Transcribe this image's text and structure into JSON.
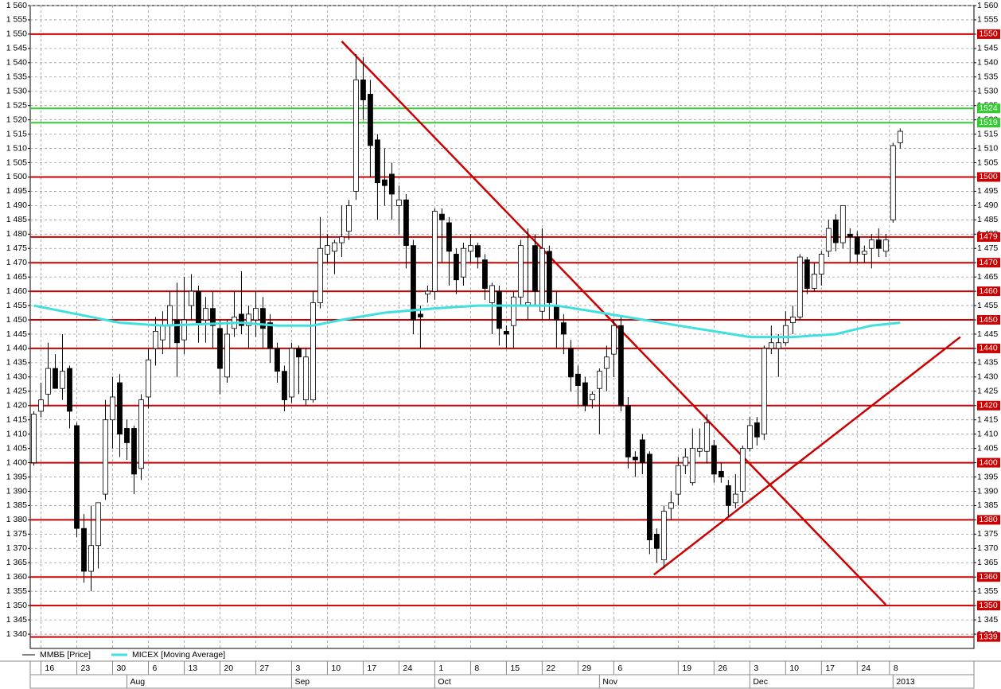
{
  "chart_data": {
    "type": "candlestick",
    "x": [
      0,
      1,
      2,
      3,
      4,
      5,
      6,
      7,
      8,
      9,
      10,
      11,
      12,
      13,
      14,
      15,
      16,
      17,
      18,
      19,
      20,
      21,
      22,
      23,
      24,
      25,
      26,
      27,
      28,
      29,
      30,
      31,
      32,
      33,
      34,
      35,
      36,
      37,
      38,
      39,
      40,
      41,
      42,
      43,
      44,
      45,
      46,
      47,
      48,
      49,
      50,
      51,
      52,
      53,
      54,
      55,
      56,
      57,
      58,
      59,
      60,
      61,
      62,
      63,
      64,
      65,
      66,
      67,
      68,
      69,
      70,
      71,
      72,
      73,
      74,
      75,
      76,
      77,
      78,
      79,
      80,
      81,
      82,
      83,
      84,
      85,
      86,
      87,
      88,
      89,
      90,
      91,
      92,
      93,
      94,
      95,
      96,
      97,
      98,
      99,
      100,
      101,
      102,
      103,
      104,
      105,
      106,
      107,
      108,
      109,
      110,
      111,
      112,
      113,
      114,
      115,
      116,
      117,
      118,
      119,
      120,
      121
    ],
    "series": [
      {
        "name": "ММВБ [Price]",
        "color": "#000000",
        "up_color": "#ffffff",
        "down_color": "#000000",
        "open": [
          1400,
          1418,
          1424,
          1433,
          1426,
          1433,
          1413,
          1377,
          1362,
          1371,
          1389,
          1415,
          1428,
          1412,
          1412,
          1398,
          1423,
          1440,
          1443,
          1448,
          1450,
          1443,
          1455,
          1460,
          1450,
          1454,
          1447,
          1430,
          1447,
          1452,
          1448,
          1450,
          1454,
          1449,
          1440,
          1432,
          1423,
          1440,
          1422,
          1422,
          1456,
          1473,
          1474,
          1477,
          1481,
          1495,
          1534,
          1529,
          1513,
          1499,
          1501,
          1490,
          1492,
          1476,
          1452,
          1459,
          1460,
          1487,
          1484,
          1473,
          1465,
          1474,
          1476,
          1471,
          1456,
          1460,
          1446,
          1448,
          1458,
          1455,
          1476,
          1453,
          1474,
          1455,
          1449,
          1440,
          1431,
          1428,
          1422,
          1426,
          1433,
          1438,
          1448,
          1420,
          1402,
          1408,
          1403,
          1375,
          1366,
          1384,
          1389,
          1399,
          1393,
          1404,
          1404,
          1406,
          1397,
          1392,
          1386,
          1390,
          1405,
          1414,
          1410,
          1440,
          1440,
          1442,
          1449,
          1451,
          1471,
          1461,
          1466,
          1474,
          1485,
          1477,
          1480,
          1479,
          1473,
          1475,
          1478,
          1474,
          1485,
          1512
        ],
        "high": [
          1418,
          1428,
          1442,
          1438,
          1445,
          1434,
          1414,
          1382,
          1385,
          1386,
          1422,
          1430,
          1431,
          1415,
          1413,
          1424,
          1440,
          1451,
          1453,
          1460,
          1463,
          1465,
          1466,
          1462,
          1458,
          1460,
          1450,
          1450,
          1460,
          1467,
          1455,
          1460,
          1458,
          1452,
          1442,
          1434,
          1442,
          1441,
          1440,
          1460,
          1486,
          1480,
          1478,
          1490,
          1492,
          1543,
          1542,
          1534,
          1515,
          1510,
          1505,
          1497,
          1494,
          1478,
          1455,
          1462,
          1489,
          1489,
          1486,
          1475,
          1477,
          1480,
          1477,
          1473,
          1463,
          1462,
          1448,
          1460,
          1478,
          1482,
          1480,
          1482,
          1476,
          1460,
          1452,
          1443,
          1434,
          1430,
          1425,
          1433,
          1441,
          1450,
          1451,
          1423,
          1404,
          1410,
          1404,
          1377,
          1385,
          1390,
          1402,
          1405,
          1412,
          1412,
          1417,
          1408,
          1400,
          1394,
          1396,
          1406,
          1416,
          1416,
          1441,
          1448,
          1445,
          1453,
          1455,
          1473,
          1472,
          1470,
          1474,
          1485,
          1487,
          1490,
          1482,
          1481,
          1476,
          1480,
          1482,
          1480,
          1512,
          1517
        ],
        "low": [
          1399,
          1416,
          1420,
          1426,
          1422,
          1412,
          1374,
          1358,
          1355,
          1363,
          1387,
          1405,
          1402,
          1401,
          1389,
          1394,
          1419,
          1434,
          1438,
          1440,
          1430,
          1438,
          1450,
          1442,
          1442,
          1440,
          1424,
          1428,
          1444,
          1445,
          1440,
          1444,
          1440,
          1435,
          1428,
          1418,
          1421,
          1424,
          1420,
          1421,
          1454,
          1470,
          1466,
          1472,
          1478,
          1492,
          1520,
          1500,
          1485,
          1490,
          1485,
          1480,
          1468,
          1445,
          1440,
          1456,
          1457,
          1470,
          1462,
          1459,
          1462,
          1470,
          1468,
          1457,
          1445,
          1441,
          1440,
          1440,
          1455,
          1450,
          1455,
          1450,
          1450,
          1440,
          1438,
          1425,
          1420,
          1418,
          1419,
          1410,
          1425,
          1430,
          1418,
          1398,
          1395,
          1396,
          1368,
          1365,
          1363,
          1380,
          1385,
          1396,
          1392,
          1402,
          1400,
          1393,
          1393,
          1381,
          1384,
          1386,
          1404,
          1406,
          1408,
          1438,
          1430,
          1441,
          1445,
          1450,
          1459,
          1460,
          1462,
          1472,
          1474,
          1475,
          1470,
          1470,
          1470,
          1468,
          1472,
          1472,
          1484,
          1510
        ],
        "close": [
          1417,
          1422,
          1433,
          1426,
          1432,
          1418,
          1377,
          1362,
          1371,
          1386,
          1415,
          1423,
          1410,
          1407,
          1396,
          1422,
          1436,
          1446,
          1448,
          1455,
          1442,
          1450,
          1460,
          1449,
          1454,
          1448,
          1433,
          1445,
          1451,
          1448,
          1452,
          1454,
          1447,
          1440,
          1432,
          1422,
          1440,
          1437,
          1437,
          1456,
          1475,
          1476,
          1477,
          1479,
          1490,
          1534,
          1527,
          1511,
          1498,
          1497,
          1494,
          1492,
          1476,
          1450,
          1451,
          1460,
          1488,
          1485,
          1474,
          1464,
          1475,
          1476,
          1472,
          1461,
          1462,
          1447,
          1445,
          1458,
          1476,
          1456,
          1460,
          1475,
          1456,
          1450,
          1445,
          1430,
          1427,
          1420,
          1424,
          1432,
          1437,
          1448,
          1420,
          1402,
          1401,
          1400,
          1373,
          1370,
          1383,
          1386,
          1399,
          1402,
          1405,
          1405,
          1414,
          1396,
          1395,
          1385,
          1389,
          1405,
          1413,
          1409,
          1440,
          1442,
          1442,
          1448,
          1451,
          1472,
          1461,
          1466,
          1473,
          1482,
          1477,
          1490,
          1479,
          1473,
          1474,
          1478,
          1475,
          1478,
          1511,
          1516
        ]
      },
      {
        "name": "MICEX [Moving Average]",
        "color": "#40e0e0",
        "x": [
          0,
          6,
          12,
          18,
          29,
          34,
          39,
          43,
          49,
          56,
          62,
          68,
          73,
          78,
          84,
          90,
          95,
          100,
          106,
          112,
          117,
          121
        ],
        "values": [
          1455,
          1452,
          1449,
          1448,
          1449,
          1448,
          1448,
          1450,
          1452.5,
          1454,
          1455,
          1455,
          1455,
          1453,
          1450.5,
          1448,
          1446,
          1444,
          1444,
          1445,
          1448,
          1449
        ]
      }
    ],
    "levels": [
      {
        "value": 1550,
        "color": "#cc0000"
      },
      {
        "value": 1524,
        "color": "#33cc33"
      },
      {
        "value": 1519,
        "color": "#33cc33"
      },
      {
        "value": 1500,
        "color": "#cc0000"
      },
      {
        "value": 1479,
        "color": "#cc0000"
      },
      {
        "value": 1470,
        "color": "#cc0000"
      },
      {
        "value": 1460,
        "color": "#cc0000"
      },
      {
        "value": 1450,
        "color": "#cc0000"
      },
      {
        "value": 1440,
        "color": "#cc0000"
      },
      {
        "value": 1420,
        "color": "#cc0000"
      },
      {
        "value": 1400,
        "color": "#cc0000"
      },
      {
        "value": 1380,
        "color": "#cc0000"
      },
      {
        "value": 1360,
        "color": "#cc0000"
      },
      {
        "value": 1350,
        "color": "#cc0000"
      },
      {
        "value": 1339,
        "color": "#cc0000"
      }
    ],
    "trendlines": [
      {
        "color": "#cc0000",
        "x": [
          43,
          119
        ],
        "values": [
          1547.5,
          1350.3
        ]
      },
      {
        "color": "#cc0000",
        "x": [
          86.6,
          129.4
        ],
        "values": [
          1360.8,
          1444
        ]
      }
    ],
    "xlim": [
      -0.5,
      131.3
    ],
    "ylim": [
      1335,
      1560
    ],
    "grid": true,
    "xticks": [
      {
        "value": 1,
        "label": "16"
      },
      {
        "value": 6,
        "label": "23"
      },
      {
        "value": 11,
        "label": "30"
      },
      {
        "value": 16,
        "label": "6"
      },
      {
        "value": 21,
        "label": "13"
      },
      {
        "value": 26,
        "label": "20"
      },
      {
        "value": 31,
        "label": "27"
      },
      {
        "value": 36,
        "label": "3"
      },
      {
        "value": 41,
        "label": "10"
      },
      {
        "value": 46,
        "label": "17"
      },
      {
        "value": 51,
        "label": "24"
      },
      {
        "value": 56,
        "label": "1"
      },
      {
        "value": 61,
        "label": "8"
      },
      {
        "value": 66,
        "label": "15"
      },
      {
        "value": 71,
        "label": "22"
      },
      {
        "value": 76,
        "label": "29"
      },
      {
        "value": 81,
        "label": "6"
      },
      {
        "value": 90,
        "label": "19"
      },
      {
        "value": 95,
        "label": "26"
      },
      {
        "value": 100,
        "label": "3"
      },
      {
        "value": 105,
        "label": "10"
      },
      {
        "value": 110,
        "label": "17"
      },
      {
        "value": 115,
        "label": "24"
      },
      {
        "value": 119.5,
        "label": "8"
      }
    ],
    "month_ticks": [
      {
        "value": 13,
        "label": "Aug"
      },
      {
        "value": 36,
        "label": "Sep"
      },
      {
        "value": 56,
        "label": "Oct"
      },
      {
        "value": 79,
        "label": "Nov"
      },
      {
        "value": 100,
        "label": "Dec"
      },
      {
        "value": 120,
        "label": "2013"
      }
    ],
    "yticks": [
      {
        "value": 1340,
        "label": "1 340"
      },
      {
        "value": 1345,
        "label": "1 345"
      },
      {
        "value": 1350,
        "label": "1 350"
      },
      {
        "value": 1355,
        "label": "1 355"
      },
      {
        "value": 1360,
        "label": "1 360"
      },
      {
        "value": 1365,
        "label": "1 365"
      },
      {
        "value": 1370,
        "label": "1 370"
      },
      {
        "value": 1375,
        "label": "1 375"
      },
      {
        "value": 1380,
        "label": "1 380"
      },
      {
        "value": 1385,
        "label": "1 385"
      },
      {
        "value": 1390,
        "label": "1 390"
      },
      {
        "value": 1395,
        "label": "1 395"
      },
      {
        "value": 1400,
        "label": "1 400"
      },
      {
        "value": 1405,
        "label": "1 405"
      },
      {
        "value": 1410,
        "label": "1 410"
      },
      {
        "value": 1415,
        "label": "1 415"
      },
      {
        "value": 1420,
        "label": "1 420"
      },
      {
        "value": 1425,
        "label": "1 425"
      },
      {
        "value": 1430,
        "label": "1 430"
      },
      {
        "value": 1435,
        "label": "1 435"
      },
      {
        "value": 1440,
        "label": "1 440"
      },
      {
        "value": 1445,
        "label": "1 445"
      },
      {
        "value": 1450,
        "label": "1 450"
      },
      {
        "value": 1455,
        "label": "1 455"
      },
      {
        "value": 1460,
        "label": "1 460"
      },
      {
        "value": 1465,
        "label": "1 465"
      },
      {
        "value": 1470,
        "label": "1 470"
      },
      {
        "value": 1475,
        "label": "1 475"
      },
      {
        "value": 1480,
        "label": "1 480"
      },
      {
        "value": 1485,
        "label": "1 485"
      },
      {
        "value": 1490,
        "label": "1 490"
      },
      {
        "value": 1495,
        "label": "1 495"
      },
      {
        "value": 1500,
        "label": "1 500"
      },
      {
        "value": 1505,
        "label": "1 505"
      },
      {
        "value": 1510,
        "label": "1 510"
      },
      {
        "value": 1515,
        "label": "1 515"
      },
      {
        "value": 1520,
        "label": "1 520"
      },
      {
        "value": 1525,
        "label": "1 525"
      },
      {
        "value": 1530,
        "label": "1 530"
      },
      {
        "value": 1535,
        "label": "1 535"
      },
      {
        "value": 1540,
        "label": "1 540"
      },
      {
        "value": 1545,
        "label": "1 545"
      },
      {
        "value": 1550,
        "label": "1 550"
      },
      {
        "value": 1555,
        "label": "1 555"
      },
      {
        "value": 1560,
        "label": "1 560"
      }
    ]
  }
}
